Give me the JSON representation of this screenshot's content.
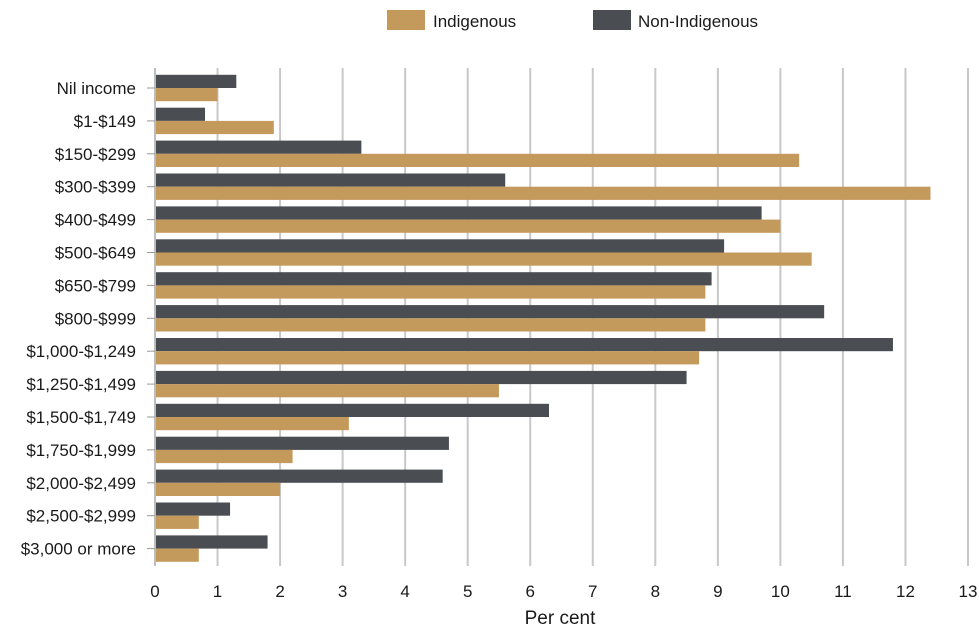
{
  "chart_data": {
    "type": "bar",
    "orientation": "horizontal",
    "categories": [
      "Nil income",
      "$1-$149",
      "$150-$299",
      "$300-$399",
      "$400-$499",
      "$500-$649",
      "$650-$799",
      "$800-$999",
      "$1,000-$1,249",
      "$1,250-$1,499",
      "$1,500-$1,749",
      "$1,750-$1,999",
      "$2,000-$2,499",
      "$2,500-$2,999",
      "$3,000 or more"
    ],
    "series": [
      {
        "name": "Non-Indigenous",
        "color": "#4a4d52",
        "values": [
          1.3,
          0.8,
          3.3,
          5.6,
          9.7,
          9.1,
          8.9,
          10.7,
          11.8,
          8.5,
          6.3,
          4.7,
          4.6,
          1.2,
          1.8
        ]
      },
      {
        "name": "Indigenous",
        "color": "#c49a5c",
        "values": [
          1.0,
          1.9,
          10.3,
          12.4,
          10.0,
          10.5,
          8.8,
          8.8,
          8.7,
          5.5,
          3.1,
          2.2,
          2.0,
          0.7,
          0.7
        ]
      }
    ],
    "legend_order": [
      "Indigenous",
      "Non-Indigenous"
    ],
    "legend_placement": "top",
    "xlabel": "Per cent",
    "ylabel": "",
    "xlim": [
      0,
      13
    ],
    "x_ticks": [
      0,
      1,
      2,
      3,
      4,
      5,
      6,
      7,
      8,
      9,
      10,
      11,
      12,
      13
    ],
    "grid": "vertical",
    "grid_color": "#c8c8c8"
  }
}
